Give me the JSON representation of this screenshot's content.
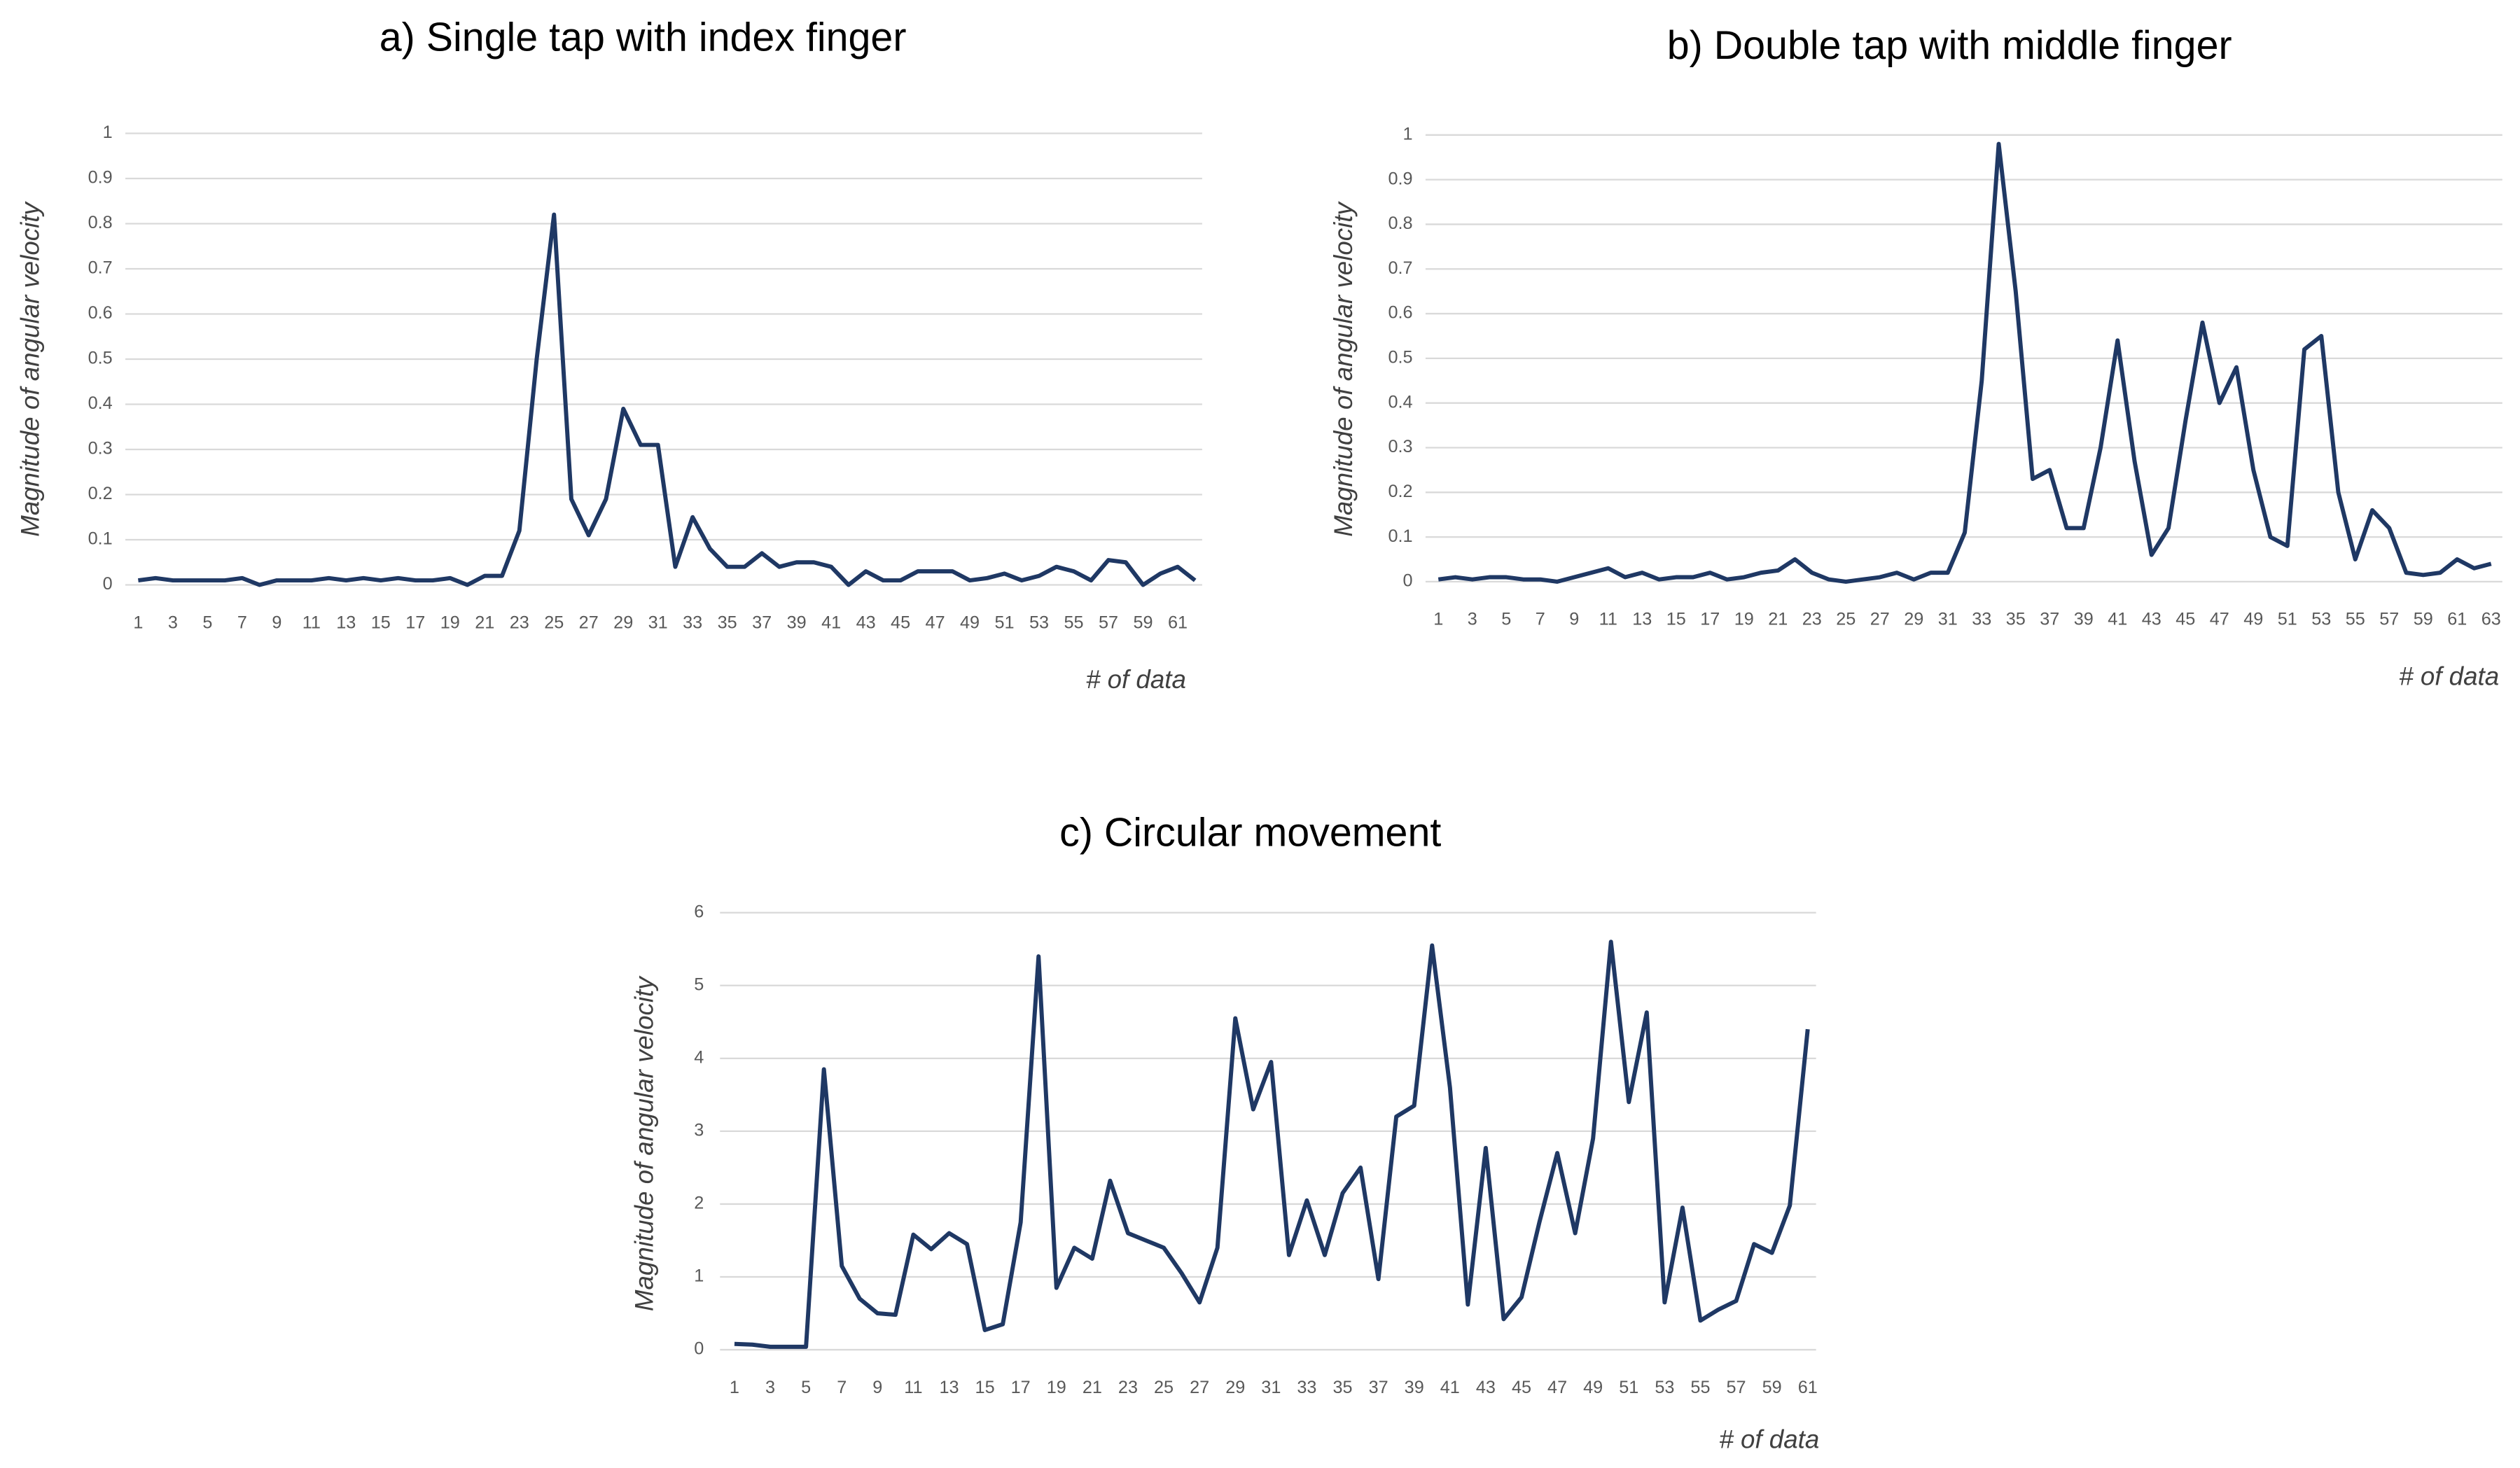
{
  "chart_data": [
    {
      "type": "line",
      "title": "a) Single tap with index finger",
      "y_label": "Magnitude of angular velocity",
      "x_label": "# of data",
      "color": "#1f3864",
      "grid": true,
      "categories": [
        "1",
        null,
        "3",
        null,
        "5",
        null,
        "7",
        null,
        "9",
        null,
        "11",
        null,
        "13",
        null,
        "15",
        null,
        "17",
        null,
        "19",
        null,
        "21",
        null,
        "23",
        null,
        "25",
        null,
        "27",
        null,
        "29",
        null,
        "31",
        null,
        "33",
        null,
        "35",
        null,
        "37",
        null,
        "39",
        null,
        "41",
        null,
        "43",
        null,
        "45",
        null,
        "47",
        null,
        "49",
        null,
        "51",
        null,
        "53",
        null,
        "55",
        null,
        "57",
        null,
        "59",
        null,
        "61",
        null
      ],
      "values": [
        0.01,
        0.015,
        0.01,
        0.01,
        0.01,
        0.01,
        0.015,
        0.0,
        0.01,
        0.01,
        0.01,
        0.015,
        0.01,
        0.015,
        0.01,
        0.015,
        0.01,
        0.01,
        0.015,
        0.0,
        0.02,
        0.02,
        0.12,
        0.5,
        0.82,
        0.19,
        0.11,
        0.19,
        0.39,
        0.31,
        0.31,
        0.04,
        0.15,
        0.08,
        0.04,
        0.04,
        0.07,
        0.04,
        0.05,
        0.05,
        0.04,
        0.0,
        0.03,
        0.01,
        0.01,
        0.03,
        0.03,
        0.03,
        0.01,
        0.015,
        0.025,
        0.01,
        0.02,
        0.04,
        0.03,
        0.01,
        0.055,
        0.05,
        0.0,
        0.025,
        0.04,
        0.01
      ],
      "ylim": [
        0,
        1
      ],
      "yticks": [
        0,
        0.1,
        0.2,
        0.3,
        0.4,
        0.5,
        0.6,
        0.7,
        0.8,
        0.9,
        1
      ]
    },
    {
      "type": "line",
      "title": "b) Double tap with middle finger",
      "y_label": "Magnitude of angular velocity",
      "x_label": "# of data",
      "color": "#1f3864",
      "grid": true,
      "categories": [
        "1",
        null,
        "3",
        null,
        "5",
        null,
        "7",
        null,
        "9",
        null,
        "11",
        null,
        "13",
        null,
        "15",
        null,
        "17",
        null,
        "19",
        null,
        "21",
        null,
        "23",
        null,
        "25",
        null,
        "27",
        null,
        "29",
        null,
        "31",
        null,
        "33",
        null,
        "35",
        null,
        "37",
        null,
        "39",
        null,
        "41",
        null,
        "43",
        null,
        "45",
        null,
        "47",
        null,
        "49",
        null,
        "51",
        null,
        "53",
        null,
        "55",
        null,
        "57",
        null,
        "59",
        null,
        "61",
        null,
        "63"
      ],
      "values": [
        0.005,
        0.01,
        0.005,
        0.01,
        0.01,
        0.005,
        0.005,
        0.0,
        0.01,
        0.02,
        0.03,
        0.01,
        0.02,
        0.005,
        0.01,
        0.01,
        0.02,
        0.005,
        0.01,
        0.02,
        0.025,
        0.05,
        0.02,
        0.005,
        0.0,
        0.005,
        0.01,
        0.02,
        0.005,
        0.02,
        0.02,
        0.11,
        0.45,
        0.98,
        0.65,
        0.23,
        0.25,
        0.12,
        0.12,
        0.3,
        0.54,
        0.27,
        0.06,
        0.12,
        0.36,
        0.58,
        0.4,
        0.48,
        0.25,
        0.1,
        0.08,
        0.52,
        0.55,
        0.2,
        0.05,
        0.16,
        0.12,
        0.02,
        0.015,
        0.02,
        0.05,
        0.03,
        0.04
      ],
      "ylim": [
        0,
        1
      ],
      "yticks": [
        0,
        0.1,
        0.2,
        0.3,
        0.4,
        0.5,
        0.6,
        0.7,
        0.8,
        0.9,
        1
      ]
    },
    {
      "type": "line",
      "title": "c) Circular movement",
      "y_label": "Magnitude of angular velocity",
      "x_label": "# of data",
      "color": "#1f3864",
      "grid": true,
      "categories": [
        "1",
        null,
        "3",
        null,
        "5",
        null,
        "7",
        null,
        "9",
        null,
        "11",
        null,
        "13",
        null,
        "15",
        null,
        "17",
        null,
        "19",
        null,
        "21",
        null,
        "23",
        null,
        "25",
        null,
        "27",
        null,
        "29",
        null,
        "31",
        null,
        "33",
        null,
        "35",
        null,
        "37",
        null,
        "39",
        null,
        "41",
        null,
        "43",
        null,
        "45",
        null,
        "47",
        null,
        "49",
        null,
        "51",
        null,
        "53",
        null,
        "55",
        null,
        "57",
        null,
        "59",
        null,
        "61"
      ],
      "values": [
        0.08,
        0.07,
        0.04,
        0.04,
        0.04,
        3.85,
        1.15,
        0.7,
        0.5,
        0.48,
        1.58,
        1.38,
        1.6,
        1.45,
        0.27,
        0.35,
        1.75,
        5.4,
        0.85,
        1.4,
        1.25,
        2.32,
        1.6,
        1.5,
        1.4,
        1.05,
        0.65,
        1.4,
        4.55,
        3.3,
        3.95,
        1.3,
        2.05,
        1.3,
        2.15,
        2.5,
        0.97,
        3.2,
        3.35,
        5.55,
        3.6,
        0.62,
        2.77,
        0.42,
        0.72,
        1.75,
        2.7,
        1.6,
        2.9,
        5.6,
        3.4,
        4.63,
        0.65,
        1.95,
        0.4,
        0.55,
        0.67,
        1.45,
        1.33,
        1.98,
        4.4
      ],
      "ylim": [
        0,
        6
      ],
      "yticks": [
        0,
        1,
        2,
        3,
        4,
        5,
        6
      ]
    }
  ]
}
